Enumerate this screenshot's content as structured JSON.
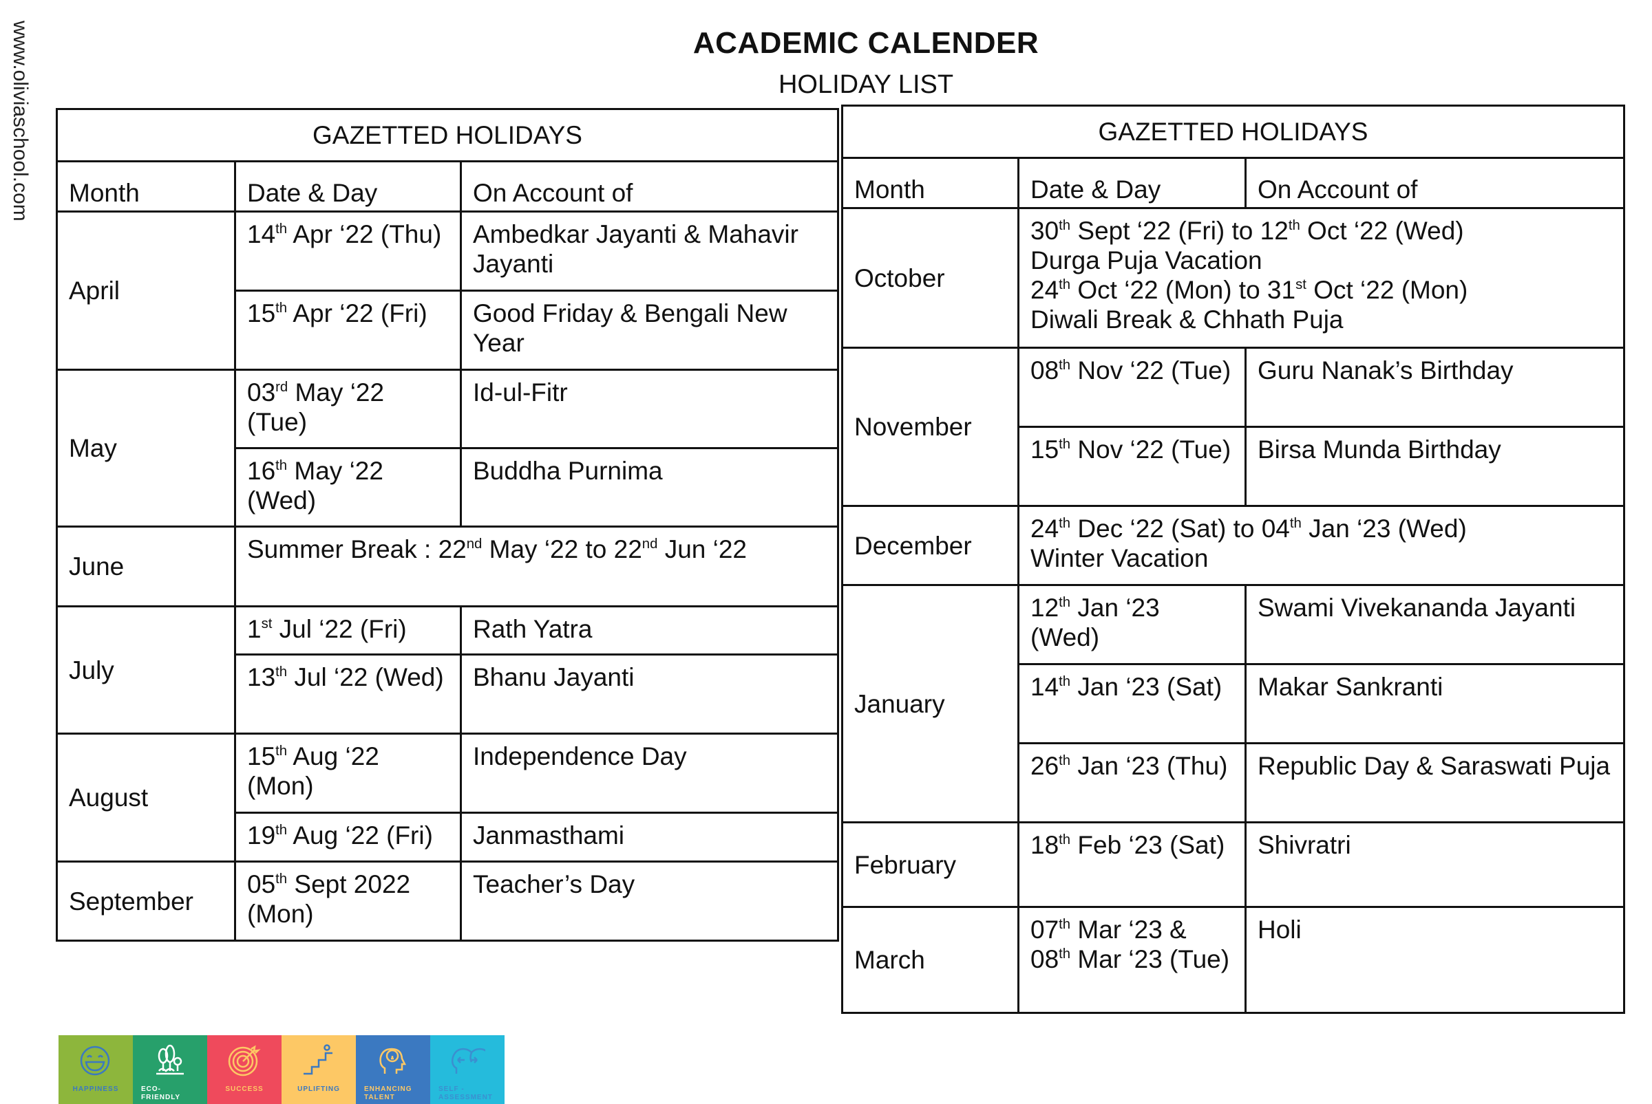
{
  "header": {
    "title": "ACADEMIC CALENDER",
    "subtitle": "HOLIDAY LIST",
    "website": "www.oliviaschool.com"
  },
  "columns": {
    "month": "Month",
    "date": "Date & Day",
    "reason": "On Account of"
  },
  "left": {
    "title": "GAZETTED HOLIDAYS",
    "rows": [
      {
        "month": "April",
        "entries": [
          {
            "date": [
              "14",
              {
                "sup": "th"
              },
              " Apr ‘22 (Thu)"
            ],
            "reason": "Ambedkar Jayanti & Mahavir Jayanti"
          },
          {
            "date": [
              "15",
              {
                "sup": "th"
              },
              " Apr ‘22 (Fri)"
            ],
            "reason": "Good Friday & Bengali New Year"
          }
        ]
      },
      {
        "month": "May",
        "entries": [
          {
            "date": [
              "03",
              {
                "sup": "rd"
              },
              " May ‘22 (Tue)"
            ],
            "reason": "Id-ul-Fitr"
          },
          {
            "date": [
              "16",
              {
                "sup": "th"
              },
              " May ‘22 (Wed)"
            ],
            "reason": "Buddha Purnima"
          }
        ]
      },
      {
        "month": "June",
        "span": [
          "Summer Break : 22",
          {
            "sup": "nd"
          },
          " May ‘22 to 22",
          {
            "sup": "nd"
          },
          " Jun ‘22"
        ]
      },
      {
        "month": "July",
        "entries": [
          {
            "date": [
              "1",
              {
                "sup": "st"
              },
              " Jul ‘22 (Fri)"
            ],
            "reason": "Rath Yatra"
          },
          {
            "date": [
              "13",
              {
                "sup": "th"
              },
              " Jul ‘22 (Wed)"
            ],
            "reason": "Bhanu Jayanti"
          }
        ]
      },
      {
        "month": "August",
        "entries": [
          {
            "date": [
              "15",
              {
                "sup": "th"
              },
              " Aug ‘22 (Mon)"
            ],
            "reason": "Independence Day"
          },
          {
            "date": [
              "19",
              {
                "sup": "th"
              },
              " Aug ‘22 (Fri)"
            ],
            "reason": "Janmasthami"
          }
        ]
      },
      {
        "month": "September",
        "entries": [
          {
            "date": [
              "05",
              {
                "sup": "th"
              },
              " Sept 2022 (Mon)"
            ],
            "reason": "Teacher’s Day"
          }
        ]
      }
    ]
  },
  "right": {
    "title": "GAZETTED HOLIDAYS",
    "rows": [
      {
        "month": "October",
        "span": [
          "30",
          {
            "sup": "th"
          },
          " Sept ‘22 (Fri) to 12",
          {
            "sup": "th"
          },
          " Oct ‘22 (Wed)",
          {
            "br": 1
          },
          "Durga Puja Vacation",
          {
            "br": 1
          },
          "24",
          {
            "sup": "th"
          },
          " Oct ‘22 (Mon) to 31",
          {
            "sup": "st"
          },
          " Oct ‘22  (Mon)",
          {
            "br": 1
          },
          "Diwali Break & Chhath Puja"
        ]
      },
      {
        "month": "November",
        "entries": [
          {
            "date": [
              "08",
              {
                "sup": "th"
              },
              " Nov ‘22 (Tue)"
            ],
            "reason": "Guru Nanak’s Birthday"
          },
          {
            "date": [
              "15",
              {
                "sup": "th"
              },
              " Nov ‘22 (Tue)"
            ],
            "reason": "Birsa Munda Birthday"
          }
        ]
      },
      {
        "month": "December",
        "span": [
          "24",
          {
            "sup": "th"
          },
          " Dec ‘22 (Sat) to 04",
          {
            "sup": "th"
          },
          " Jan ‘23 (Wed)",
          {
            "br": 1
          },
          "Winter Vacation"
        ]
      },
      {
        "month": "January",
        "entries": [
          {
            "date": [
              "12",
              {
                "sup": "th"
              },
              " Jan ‘23 (Wed)"
            ],
            "reason": "Swami Vivekananda Jayanti"
          },
          {
            "date": [
              "14",
              {
                "sup": "th"
              },
              " Jan ‘23 (Sat)"
            ],
            "reason": "Makar Sankranti"
          },
          {
            "date": [
              "26",
              {
                "sup": "th"
              },
              " Jan ‘23 (Thu)"
            ],
            "reason": "Republic Day & Saraswati Puja"
          }
        ]
      },
      {
        "month": "February",
        "entries": [
          {
            "date": [
              "18",
              {
                "sup": "th"
              },
              " Feb ‘23 (Sat)"
            ],
            "reason": "Shivratri"
          }
        ]
      },
      {
        "month": "March",
        "entries": [
          {
            "date": [
              "07",
              {
                "sup": "th"
              },
              " Mar ‘23 &",
              {
                "br": 1
              },
              "08",
              {
                "sup": "th"
              },
              " Mar ‘23 (Tue)"
            ],
            "reason": "Holi"
          }
        ]
      }
    ]
  },
  "logos": [
    {
      "label": "HAPPINESS",
      "icon": "smiley-icon",
      "bg": "#8db63c",
      "fg": "#3b79c1"
    },
    {
      "label": "ECO-FRIENDLY",
      "icon": "trees-icon",
      "bg": "#27a06b",
      "fg": "#ffffff"
    },
    {
      "label": "SUCCESS",
      "icon": "target-icon",
      "bg": "#ef4a5c",
      "fg": "#fdc865"
    },
    {
      "label": "UPLIFTING",
      "icon": "stairs-icon",
      "bg": "#fdc865",
      "fg": "#3b79c1"
    },
    {
      "label": "ENHANCING TALENT",
      "icon": "head-bulb-icon",
      "bg": "#3b79c1",
      "fg": "#fdc865"
    },
    {
      "label": "SELF - ASSESSMENT",
      "icon": "heads-arrows-icon",
      "bg": "#25bbdc",
      "fg": "#3b8fd0"
    }
  ]
}
